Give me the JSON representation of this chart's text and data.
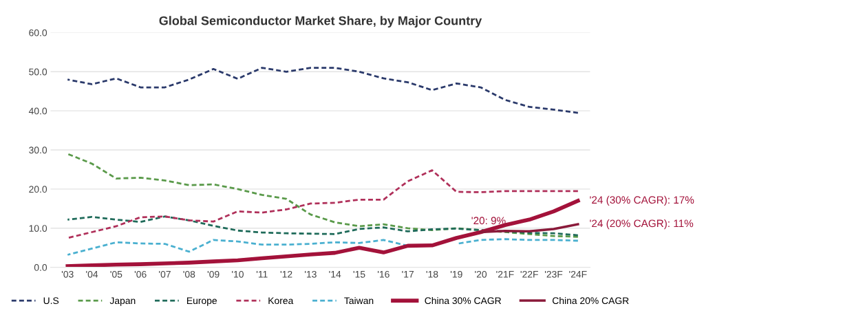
{
  "chart_data": {
    "type": "line",
    "title": "Global Semiconductor Market Share, by Major Country",
    "categories": [
      "'03",
      "'04",
      "'05",
      "'06",
      "'07",
      "'08",
      "'09",
      "'10",
      "'11",
      "'12",
      "'13",
      "'14",
      "'15",
      "'16",
      "'17",
      "'18",
      "'19",
      "'20",
      "'21F",
      "'22F",
      "'23F",
      "'24F"
    ],
    "series": [
      {
        "name": "U.S",
        "color": "#2b3a6b",
        "line_style": "dashed",
        "values": [
          48,
          46.8,
          48.3,
          46,
          46,
          48,
          50.7,
          48.2,
          51,
          50,
          51,
          51,
          50,
          48.3,
          47.3,
          45.3,
          47,
          46,
          42.8,
          41,
          40.3,
          39.5
        ]
      },
      {
        "name": "Japan",
        "color": "#5a9a4a",
        "line_style": "dashed",
        "values": [
          29,
          26.5,
          22.7,
          22.9,
          22.2,
          21,
          21.2,
          20,
          18.5,
          17.5,
          13.5,
          11.5,
          10.5,
          11,
          10,
          9.5,
          10,
          9.5,
          9,
          8.5,
          8,
          7.8
        ]
      },
      {
        "name": "Europe",
        "color": "#1f6b5a",
        "line_style": "dashed",
        "values": [
          12.2,
          12.9,
          12.2,
          11.6,
          13,
          12,
          10.6,
          9.4,
          8.9,
          8.7,
          8.6,
          8.5,
          9.8,
          10.2,
          9.2,
          9.7,
          9.9,
          9.5,
          9.2,
          8.8,
          8.7,
          8.2
        ]
      },
      {
        "name": "Korea",
        "color": "#b0305a",
        "line_style": "dashed",
        "values": [
          7.5,
          9,
          10.5,
          12.8,
          13,
          12,
          11.7,
          14.3,
          14,
          14.8,
          16.3,
          16.5,
          17.3,
          17.3,
          22,
          24.8,
          19.3,
          19.2,
          19.5,
          19.5,
          19.5,
          19.5
        ]
      },
      {
        "name": "Taiwan",
        "color": "#4ab0d0",
        "line_style": "dashed",
        "values": [
          3.2,
          4.8,
          6.4,
          6.1,
          6,
          4,
          7,
          6.6,
          5.8,
          5.8,
          6,
          6.4,
          6.2,
          7,
          5.5,
          null,
          6,
          7,
          7.2,
          7,
          7,
          6.8
        ]
      },
      {
        "name": "China 30% CAGR",
        "color": "#a3123a",
        "line_style": "solid",
        "values": [
          0.3,
          0.5,
          0.7,
          0.8,
          1.0,
          1.2,
          1.5,
          1.8,
          2.3,
          2.8,
          3.3,
          3.7,
          5,
          3.8,
          5.5,
          5.6,
          7.5,
          9,
          10.8,
          12.2,
          14.3,
          17
        ]
      },
      {
        "name": "China 20% CAGR",
        "color": "#8a1a3a",
        "line_style": "solid",
        "values": [
          null,
          null,
          null,
          null,
          null,
          null,
          null,
          null,
          null,
          null,
          null,
          null,
          null,
          null,
          null,
          null,
          null,
          9,
          9.3,
          9.2,
          9.8,
          11
        ]
      }
    ],
    "ylim": [
      0,
      60
    ],
    "yticks": [
      {
        "value": 0,
        "label": "0.0"
      },
      {
        "value": 10,
        "label": "10.0"
      },
      {
        "value": 20,
        "label": "20.0"
      },
      {
        "value": 30,
        "label": "30.0"
      },
      {
        "value": 40,
        "label": "40.0"
      },
      {
        "value": 50,
        "label": "50.0"
      },
      {
        "value": 60,
        "label": "60.0"
      }
    ],
    "grid": "y",
    "legend": "bottom",
    "annotations": [
      {
        "text": "'20: 9%",
        "x": "'20",
        "y": 9
      },
      {
        "text": "'24 (30% CAGR): 17%",
        "x": "'24F",
        "y": 17
      },
      {
        "text": "'24 (20% CAGR): 11%",
        "x": "'24F",
        "y": 11
      }
    ]
  }
}
